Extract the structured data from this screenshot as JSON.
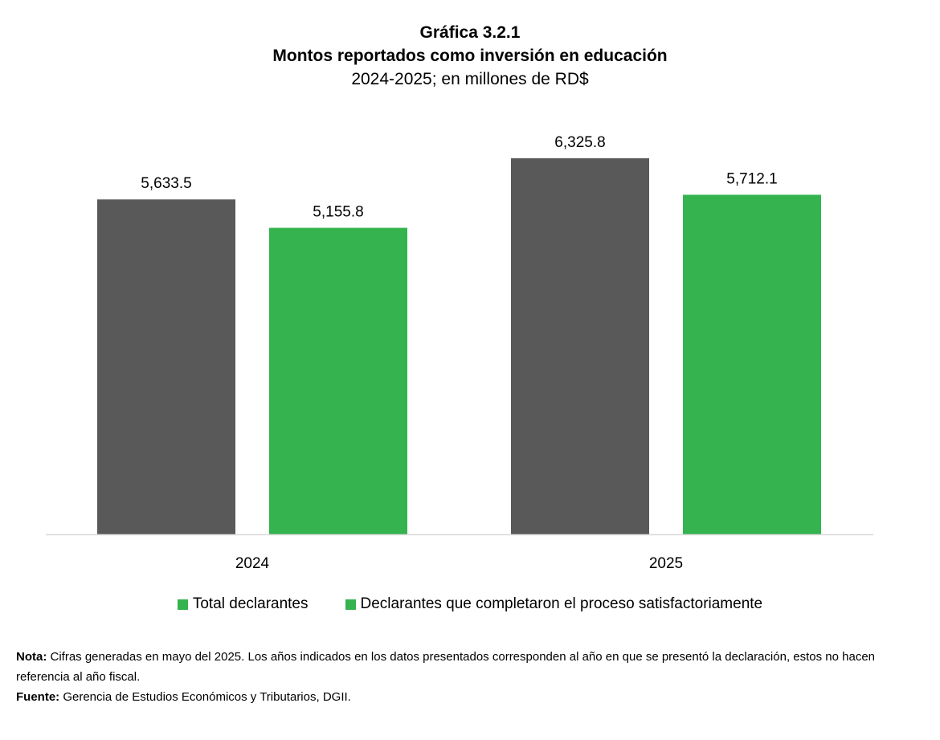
{
  "chart_data": {
    "type": "bar",
    "title": "Gráfica 3.2.1",
    "subtitle": "Montos reportados como inversión en educación",
    "unit_line": "2024-2025; en millones de RD$",
    "categories": [
      "2024",
      "2025"
    ],
    "series": [
      {
        "name": "Total declarantes",
        "color": "#595959",
        "values": [
          5633.5,
          6325.8
        ],
        "labels": [
          "5,633.5",
          "6,325.8"
        ]
      },
      {
        "name": "Declarantes que completaron el proceso satisfactoriamente",
        "color": "#34b34e",
        "values": [
          5155.8,
          5712.1
        ],
        "labels": [
          "5,155.8",
          "5,712.1"
        ]
      }
    ],
    "ylim": [
      0,
      7000
    ],
    "grid": false,
    "legend": "bottom",
    "legend_swatch_color": "#34b34e"
  },
  "notes": {
    "nota_label": "Nota:",
    "nota_text": " Cifras generadas en mayo del 2025. Los años indicados en los datos presentados corresponden al año en que se presentó la declaración, estos no hacen referencia al año fiscal.",
    "fuente_label": "Fuente:",
    "fuente_text": " Gerencia de Estudios Económicos y Tributarios, DGII."
  }
}
